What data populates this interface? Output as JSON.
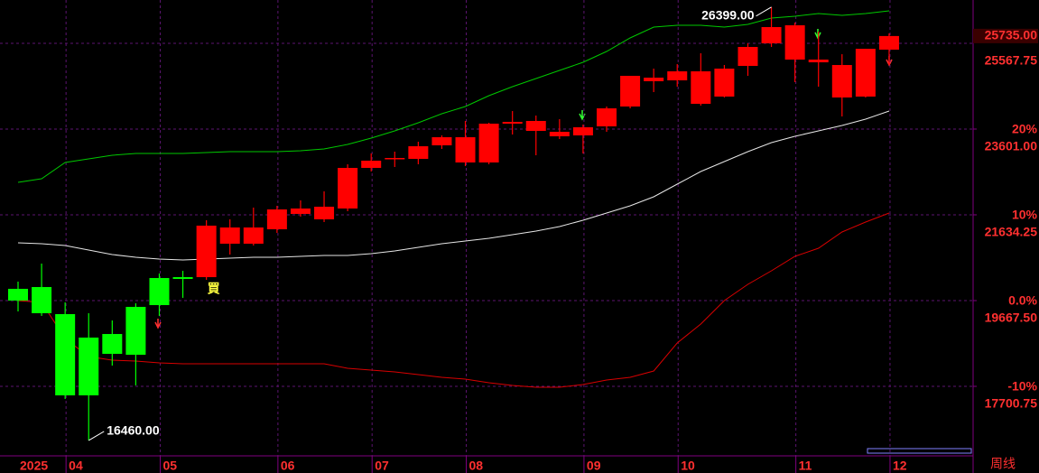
{
  "chart_data": {
    "type": "candlestick",
    "categories": [
      null,
      null,
      "04",
      null,
      null,
      null,
      "05",
      null,
      null,
      null,
      null,
      "06",
      null,
      null,
      null,
      "07",
      null,
      null,
      null,
      "08",
      null,
      null,
      null,
      null,
      "09",
      null,
      null,
      null,
      "10",
      null,
      null,
      null,
      null,
      "11",
      null,
      null,
      null,
      "12"
    ],
    "open": [
      19937,
      19978,
      19357,
      18819,
      18446,
      18425,
      19564,
      20205,
      20205,
      20972,
      20972,
      21303,
      21655,
      21531,
      21779,
      22710,
      22917,
      22917,
      23228,
      22835,
      22835,
      23725,
      23559,
      23435,
      23456,
      23663,
      24118,
      24698,
      24718,
      24180,
      24346,
      25049,
      25567,
      25194,
      25132,
      24325,
      24346,
      25422
    ],
    "high": [
      20102,
      20516,
      19626,
      19378,
      19212,
      19605,
      20288,
      20350,
      21510,
      21531,
      21800,
      21841,
      21965,
      22172,
      22793,
      23041,
      23083,
      23311,
      23456,
      23787,
      23745,
      24014,
      23911,
      23828,
      23704,
      24118,
      24822,
      24987,
      25091,
      25339,
      25070,
      25567,
      26399,
      26043,
      25836,
      25318,
      25442,
      25794
    ],
    "low": [
      19419,
      19316,
      17411,
      16460,
      18177,
      17722,
      19316,
      19730,
      20144,
      20723,
      20930,
      21220,
      21593,
      21468,
      21717,
      22628,
      22731,
      22793,
      23145,
      22752,
      22793,
      23476,
      23000,
      23373,
      23041,
      23538,
      24076,
      24449,
      24573,
      24139,
      24325,
      24822,
      25484,
      24677,
      24573,
      23890,
      24325,
      25070
    ],
    "close": [
      19668,
      19378,
      17494,
      17494,
      18901,
      19523,
      20185,
      20164,
      21386,
      21344,
      21344,
      21758,
      21779,
      21820,
      22710,
      22876,
      22938,
      23207,
      23414,
      23414,
      23725,
      23766,
      23787,
      23538,
      23642,
      24076,
      24822,
      24780,
      24925,
      24925,
      24987,
      25484,
      25940,
      25981,
      25194,
      25070,
      25442,
      25735
    ],
    "colors": [
      "#00ff00",
      "#00ff00",
      "#00ff00",
      "#00ff00",
      "#00ff00",
      "#00ff00",
      "#00ff00",
      "#00ff00",
      "#ff0000",
      "#ff0000",
      "#ff0000",
      "#ff0000",
      "#ff0000",
      "#ff0000",
      "#ff0000",
      "#ff0000",
      "#ff0000",
      "#ff0000",
      "#ff0000",
      "#ff0000",
      "#ff0000",
      "#ff0000",
      "#ff0000",
      "#ff0000",
      "#ff0000",
      "#ff0000",
      "#ff0000",
      "#ff0000",
      "#ff0000",
      "#ff0000",
      "#ff0000",
      "#ff0000",
      "#ff0000",
      "#ff0000",
      "#ff0000",
      "#ff0000",
      "#ff0000",
      "#ff0000"
    ],
    "upper_band": {
      "color": "#00c800",
      "values": [
        22379,
        22462,
        22835,
        22917,
        23000,
        23041,
        23041,
        23041,
        23062,
        23083,
        23083,
        23083,
        23104,
        23145,
        23249,
        23394,
        23559,
        23745,
        23952,
        24118,
        24366,
        24573,
        24760,
        24946,
        25132,
        25381,
        25691,
        25940,
        25981,
        25981,
        25940,
        26002,
        26146,
        26188,
        26250,
        26209,
        26250,
        26312
      ]
    },
    "middle_band": {
      "color": "#e6e6e6",
      "values": [
        20992,
        20972,
        20930,
        20827,
        20723,
        20661,
        20620,
        20599,
        20620,
        20640,
        20661,
        20661,
        20682,
        20703,
        20703,
        20744,
        20806,
        20889,
        20972,
        21034,
        21096,
        21178,
        21261,
        21365,
        21510,
        21676,
        21841,
        22048,
        22338,
        22628,
        22856,
        23083,
        23290,
        23435,
        23559,
        23683,
        23828,
        24014
      ]
    },
    "lower_band": {
      "color": "#d80000",
      "values": [
        19668,
        19626,
        18798,
        18384,
        18301,
        18280,
        18239,
        18218,
        18218,
        18218,
        18218,
        18218,
        18218,
        18218,
        18115,
        18074,
        18032,
        17970,
        17908,
        17866,
        17784,
        17722,
        17680,
        17680,
        17742,
        17846,
        17908,
        18053,
        18695,
        19129,
        19668,
        20040,
        20350,
        20682,
        20868,
        21240,
        21468,
        21676
      ]
    },
    "ylim": [
      16210,
      26561
    ],
    "yticks": [
      25567.75,
      {
        "value": 23601,
        "label": "23601.00"
      },
      21634.25,
      {
        "value": 19667.5,
        "label": "19667.50"
      },
      17700.75
    ],
    "y2lim": [
      -17.58,
      35.05
    ],
    "y2ticks": [
      {
        "value": 20,
        "label": "20%"
      },
      {
        "value": 10,
        "label": "10%"
      },
      {
        "value": 0,
        "label": "0.0%"
      },
      {
        "value": -10,
        "label": "-10%"
      }
    ],
    "grid": true,
    "max_label": "26399.00",
    "min_label": "16460.00",
    "last_label": "25735.00",
    "buy_label": "買",
    "year": "2025",
    "period": "周线"
  }
}
